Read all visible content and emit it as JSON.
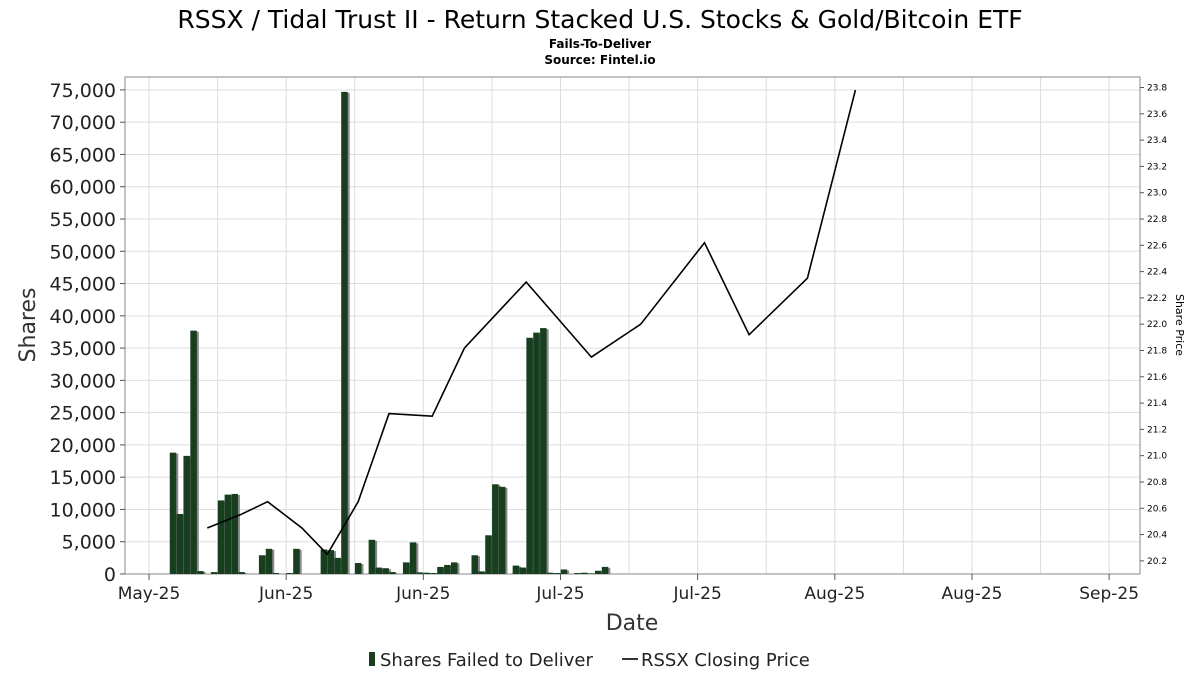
{
  "chart_data": {
    "type": "bar",
    "title": "RSSX / Tidal Trust II - Return Stacked U.S. Stocks & Gold/Bitcoin ETF",
    "subtitle": "Fails-To-Deliver",
    "source": "Source: Fintel.io",
    "xlabel": "Date",
    "ylabel": "Shares",
    "y2label": "Share Price",
    "ylim": [
      0,
      77000
    ],
    "y_ticks": [
      0,
      5000,
      10000,
      15000,
      20000,
      25000,
      30000,
      35000,
      40000,
      45000,
      50000,
      55000,
      60000,
      65000,
      70000,
      75000
    ],
    "y_tick_labels": [
      "0",
      "5,000",
      "10,000",
      "15,000",
      "20,000",
      "25,000",
      "30,000",
      "35,000",
      "40,000",
      "45,000",
      "50,000",
      "55,000",
      "60,000",
      "65,000",
      "70,000",
      "75,000"
    ],
    "y2lim": [
      20.1,
      23.88
    ],
    "y2_ticks": [
      20.2,
      20.4,
      20.6,
      20.8,
      21.0,
      21.2,
      21.4,
      21.6,
      21.8,
      22.0,
      22.2,
      22.4,
      22.6,
      22.8,
      23.0,
      23.2,
      23.4,
      23.6,
      23.8
    ],
    "y2_tick_labels": [
      "20.2",
      "20.4",
      "20.6",
      "20.8",
      "21.0",
      "21.2",
      "21.4",
      "21.6",
      "21.8",
      "22.0",
      "22.2",
      "22.4",
      "22.6",
      "22.8",
      "23.0",
      "23.2",
      "23.4",
      "23.6",
      "23.8"
    ],
    "x_ticks": [
      0.5,
      20.5,
      40.5,
      60.5,
      80.5,
      100.5,
      120.5,
      140.5
    ],
    "x_tick_labels": [
      "May-25",
      "Jun-25",
      "Jun-25",
      "Jul-25",
      "Jul-25",
      "Aug-25",
      "Aug-25",
      "Sep-25"
    ],
    "xlim": [
      -3,
      145
    ],
    "grid": true,
    "legend_position": "bottom",
    "series": [
      {
        "name": "Shares Failed to Deliver",
        "type": "bar",
        "color": "#173f1f",
        "x": [
          4,
          5,
          6,
          7,
          8,
          10,
          11,
          12,
          13,
          14,
          17,
          18,
          19,
          21,
          22,
          26,
          27,
          28,
          29,
          31,
          33,
          34,
          35,
          36,
          38,
          39,
          40,
          41,
          42,
          43,
          44,
          45,
          48,
          49,
          50,
          51,
          52,
          54,
          55,
          56,
          57,
          58,
          59,
          60,
          61,
          63,
          64,
          65,
          66,
          67
        ],
        "values": [
          18800,
          9300,
          18300,
          37700,
          450,
          300,
          11400,
          12300,
          12400,
          300,
          2900,
          3900,
          150,
          150,
          3900,
          3800,
          3700,
          2500,
          74700,
          1700,
          5300,
          1000,
          900,
          300,
          1800,
          4900,
          250,
          200,
          150,
          1100,
          1400,
          1800,
          2900,
          400,
          6000,
          13900,
          13500,
          1300,
          1000,
          36600,
          37400,
          38100,
          200,
          150,
          700,
          150,
          200,
          100,
          500,
          1100
        ]
      },
      {
        "name": "RSSX Closing Price",
        "type": "line",
        "color": "#000000",
        "x": [
          9.0,
          13.8,
          17.8,
          22.8,
          26.5,
          31.0,
          35.5,
          41.8,
          46.5,
          55.5,
          65.0,
          72.2,
          81.5,
          88.0,
          96.5,
          103.5
        ],
        "values": [
          20.45,
          20.55,
          20.65,
          20.45,
          20.25,
          20.65,
          21.32,
          21.3,
          21.82,
          22.32,
          21.75,
          22.0,
          22.62,
          21.92,
          22.35,
          23.78
        ]
      }
    ]
  }
}
